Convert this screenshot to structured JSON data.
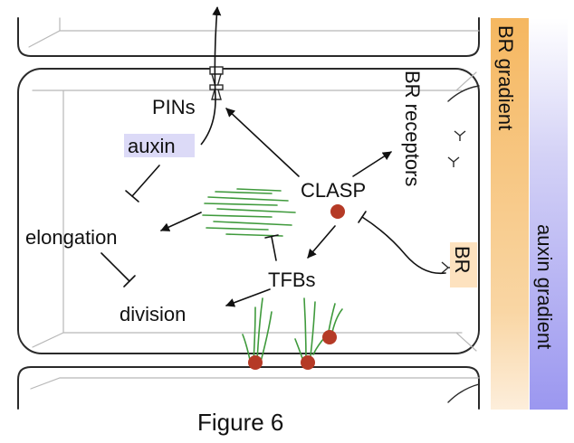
{
  "labels": {
    "pins": "PINs",
    "auxin": "auxin",
    "clasp": "CLASP",
    "br_receptors": "BR receptors",
    "elongation": "elongation",
    "tfbs": "TFBs",
    "division": "division",
    "br": "BR",
    "br_gradient": "BR gradient",
    "auxin_gradient": "auxin gradient"
  },
  "caption": "Figure 6",
  "colors": {
    "br_gradient": "#f5b760",
    "auxin_gradient": "#a09cf2",
    "auxin_highlight": "#dcdaf7",
    "br_highlight": "#fde2bf",
    "microtubule": "#3f9a3c",
    "clasp_dot": "#b53a26",
    "cell_outline": "#2a2a2a",
    "cell_inner": "#b0b0b0"
  }
}
